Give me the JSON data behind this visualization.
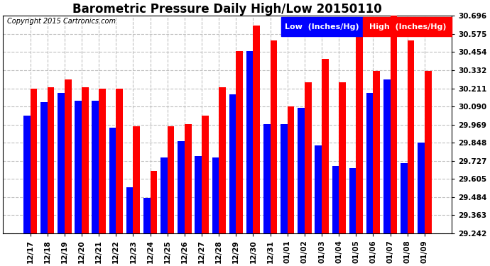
{
  "title": "Barometric Pressure Daily High/Low 20150110",
  "copyright": "Copyright 2015 Cartronics.com",
  "legend_low": "Low  (Inches/Hg)",
  "legend_high": "High  (Inches/Hg)",
  "categories": [
    "12/17",
    "12/18",
    "12/19",
    "12/20",
    "12/21",
    "12/22",
    "12/23",
    "12/24",
    "12/25",
    "12/26",
    "12/27",
    "12/28",
    "12/29",
    "12/30",
    "12/31",
    "01/01",
    "01/02",
    "01/03",
    "01/04",
    "01/05",
    "01/06",
    "01/07",
    "01/08",
    "01/09"
  ],
  "low_values": [
    30.03,
    30.12,
    30.18,
    30.13,
    30.13,
    29.95,
    29.55,
    29.48,
    29.75,
    29.86,
    29.76,
    29.75,
    30.17,
    30.46,
    29.97,
    29.97,
    30.08,
    29.83,
    29.69,
    29.68,
    30.18,
    30.27,
    29.71,
    29.85
  ],
  "high_values": [
    30.21,
    30.22,
    30.27,
    30.22,
    30.21,
    30.21,
    29.96,
    29.66,
    29.96,
    29.97,
    30.03,
    30.22,
    30.46,
    30.63,
    30.53,
    30.09,
    30.25,
    30.41,
    30.25,
    30.58,
    30.33,
    30.7,
    30.53,
    30.33
  ],
  "ylim_min": 29.242,
  "ylim_max": 30.696,
  "yticks": [
    29.242,
    29.363,
    29.484,
    29.605,
    29.727,
    29.848,
    29.969,
    30.09,
    30.211,
    30.332,
    30.454,
    30.575,
    30.696
  ],
  "bar_color_low": "#0000ff",
  "bar_color_high": "#ff0000",
  "bg_color": "#ffffff",
  "grid_color": "#c0c0c0",
  "title_fontsize": 12,
  "tick_fontsize": 7.5,
  "legend_fontsize": 8
}
